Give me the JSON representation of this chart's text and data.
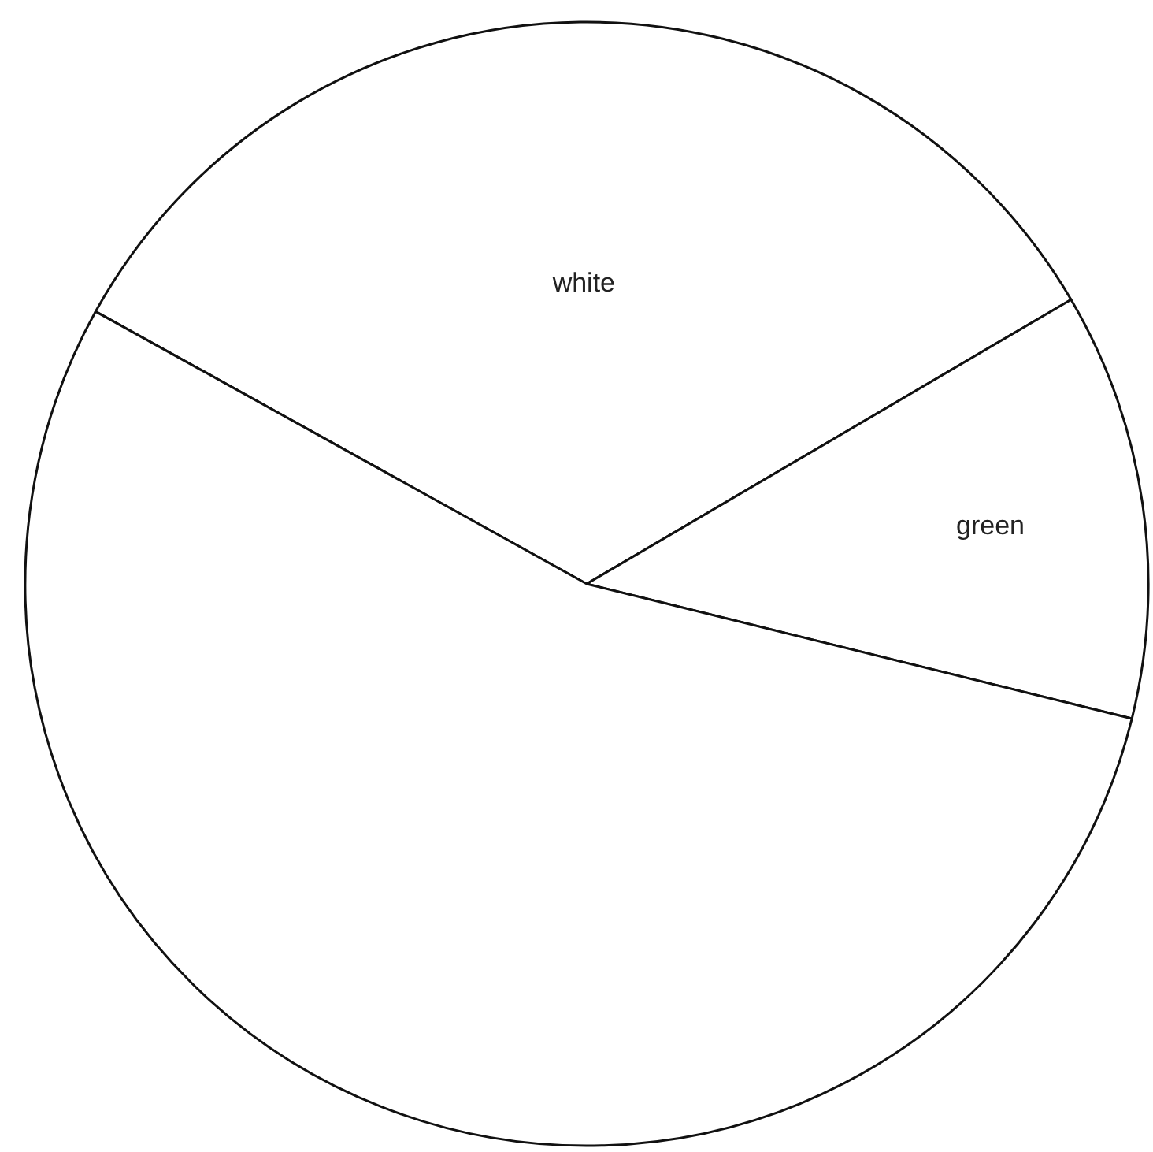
{
  "chart_data": {
    "type": "pie",
    "categories": [
      "white",
      "green",
      null
    ],
    "values": [
      33.5,
      12.3,
      54.2
    ],
    "colors": [
      "#ffffff",
      "#ffffff",
      "#ffffff"
    ]
  }
}
